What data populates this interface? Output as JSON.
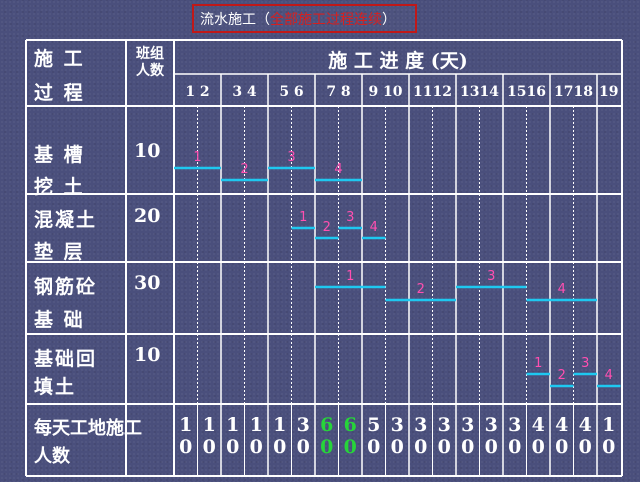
{
  "title": {
    "main": "流水施工",
    "paren_open": "（",
    "highlight": "全部施工过程连续",
    "paren_close": "）"
  },
  "header": {
    "process_line1": "施 工",
    "process_line2": "过 程",
    "crew_line1": "班组",
    "crew_line2": "人数",
    "schedule_title": "施 工 进 度 (天)"
  },
  "day_labels": [
    "1 2",
    "3 4",
    "5 6",
    "7 8",
    "9 10",
    "1112",
    "1314",
    "1516",
    "1718",
    "19"
  ],
  "processes": [
    {
      "line1": "基 槽",
      "line2": "挖 土",
      "crew": "10"
    },
    {
      "line1": "混凝土",
      "line2": "垫 层",
      "crew": "20"
    },
    {
      "line1": "钢筋砼",
      "line2": "基 础",
      "crew": "30"
    },
    {
      "line1": "基础回",
      "line2": "填土",
      "crew": "10"
    }
  ],
  "segments": [
    {
      "row": 0,
      "start": 1,
      "end": 2,
      "label": "1"
    },
    {
      "row": 0,
      "start": 3,
      "end": 4,
      "label": "2"
    },
    {
      "row": 0,
      "start": 5,
      "end": 6,
      "label": "3"
    },
    {
      "row": 0,
      "start": 7,
      "end": 8,
      "label": "4"
    },
    {
      "row": 1,
      "start": 6,
      "end": 6,
      "label": "1"
    },
    {
      "row": 1,
      "start": 7,
      "end": 7,
      "label": "2"
    },
    {
      "row": 1,
      "start": 8,
      "end": 8,
      "label": "3"
    },
    {
      "row": 1,
      "start": 9,
      "end": 9,
      "label": "4"
    },
    {
      "row": 2,
      "start": 7,
      "end": 9,
      "label": "1"
    },
    {
      "row": 2,
      "start": 10,
      "end": 12,
      "label": "2"
    },
    {
      "row": 2,
      "start": 13,
      "end": 15,
      "label": "3"
    },
    {
      "row": 2,
      "start": 16,
      "end": 18,
      "label": "4"
    },
    {
      "row": 3,
      "start": 16,
      "end": 16,
      "label": "1"
    },
    {
      "row": 3,
      "start": 17,
      "end": 17,
      "label": "2"
    },
    {
      "row": 3,
      "start": 18,
      "end": 18,
      "label": "3"
    },
    {
      "row": 3,
      "start": 19,
      "end": 19,
      "label": "4"
    }
  ],
  "daily_total": {
    "label_line1": "每天工地施工",
    "label_line2": "人数",
    "values": [
      "10",
      "10",
      "10",
      "10",
      "10",
      "30",
      "60",
      "60",
      "50",
      "30",
      "30",
      "30",
      "30",
      "30",
      "30",
      "40",
      "40",
      "40",
      "10"
    ],
    "highlight_indexes": [
      6,
      7
    ],
    "highlight_color": "#27d43a"
  },
  "colors": {
    "background": "#4a4f7c",
    "grid": "#ffffff",
    "bar": "#1ec8f0",
    "segment_label": "#ff4fb0",
    "title_border": "#c01818",
    "title_highlight": "#d62020"
  }
}
